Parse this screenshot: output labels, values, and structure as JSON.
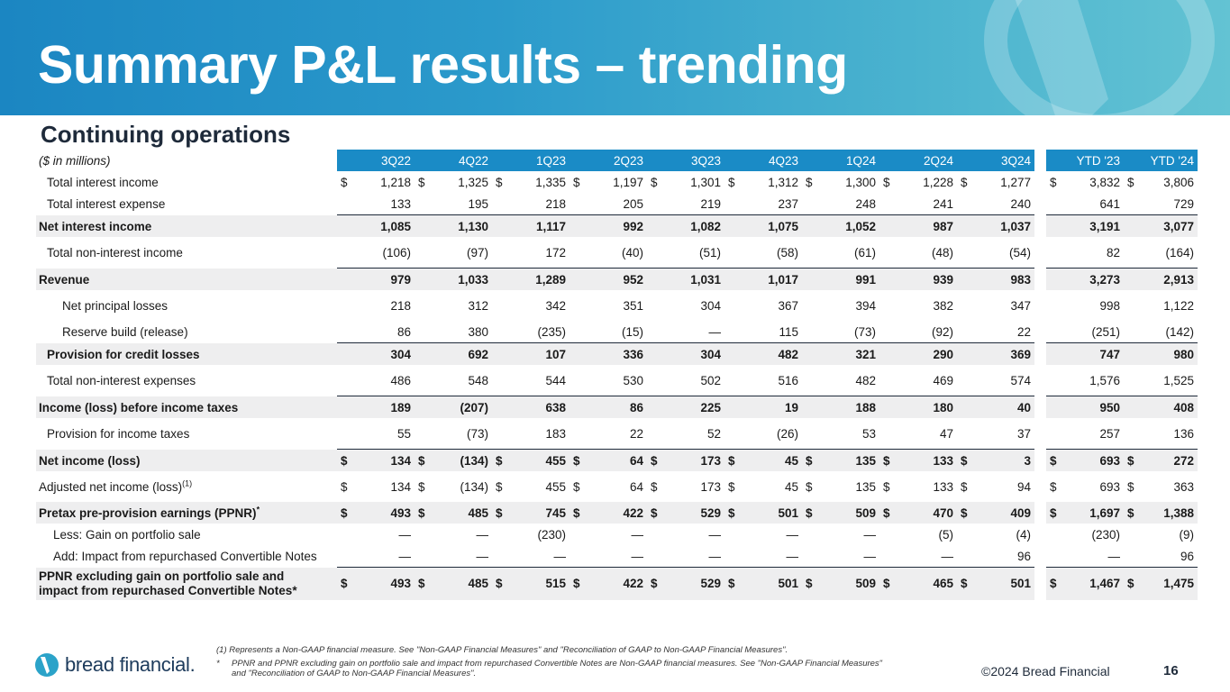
{
  "slide": {
    "title": "Summary P&L results – trending",
    "subtitle": "Continuing operations",
    "page_number": "16",
    "copyright": "©2024 Bread Financial",
    "logo_text": "bread financial."
  },
  "table": {
    "corner_label": "($ in millions)",
    "quarter_headers": [
      "3Q22",
      "4Q22",
      "1Q23",
      "2Q23",
      "3Q23",
      "4Q23",
      "1Q24",
      "2Q24",
      "3Q24"
    ],
    "ytd_headers": [
      "YTD '23",
      "YTD '24"
    ],
    "rows": [
      {
        "label": "Total interest income",
        "cur": [
          "$",
          "$",
          "$",
          "$",
          "$",
          "$",
          "$",
          "$",
          "$"
        ],
        "q": [
          "1,218",
          "1,325",
          "1,335",
          "1,197",
          "1,301",
          "1,312",
          "1,300",
          "1,228",
          "1,277"
        ],
        "ycur": [
          "$",
          "$"
        ],
        "y": [
          "3,832",
          "3,806"
        ]
      },
      {
        "label": "Total interest expense",
        "cur": [
          "",
          "",
          "",
          "",
          "",
          "",
          "",
          "",
          ""
        ],
        "q": [
          "133",
          "195",
          "218",
          "205",
          "219",
          "237",
          "248",
          "241",
          "240"
        ],
        "ycur": [
          "",
          ""
        ],
        "y": [
          "641",
          "729"
        ]
      },
      {
        "label": "Net interest income",
        "cur": [
          "",
          "",
          "",
          "",
          "",
          "",
          "",
          "",
          ""
        ],
        "q": [
          "1,085",
          "1,130",
          "1,117",
          "992",
          "1,082",
          "1,075",
          "1,052",
          "987",
          "1,037"
        ],
        "ycur": [
          "",
          ""
        ],
        "y": [
          "3,191",
          "3,077"
        ]
      },
      {
        "label": "Total non-interest income",
        "cur": [
          "",
          "",
          "",
          "",
          "",
          "",
          "",
          "",
          ""
        ],
        "q": [
          "(106)",
          "(97)",
          "172",
          "(40)",
          "(51)",
          "(58)",
          "(61)",
          "(48)",
          "(54)"
        ],
        "ycur": [
          "",
          ""
        ],
        "y": [
          "82",
          "(164)"
        ]
      },
      {
        "label": "Revenue",
        "cur": [
          "",
          "",
          "",
          "",
          "",
          "",
          "",
          "",
          ""
        ],
        "q": [
          "979",
          "1,033",
          "1,289",
          "952",
          "1,031",
          "1,017",
          "991",
          "939",
          "983"
        ],
        "ycur": [
          "",
          ""
        ],
        "y": [
          "3,273",
          "2,913"
        ]
      },
      {
        "label": "Net principal losses",
        "cur": [
          "",
          "",
          "",
          "",
          "",
          "",
          "",
          "",
          ""
        ],
        "q": [
          "218",
          "312",
          "342",
          "351",
          "304",
          "367",
          "394",
          "382",
          "347"
        ],
        "ycur": [
          "",
          ""
        ],
        "y": [
          "998",
          "1,122"
        ]
      },
      {
        "label": "Reserve build (release)",
        "cur": [
          "",
          "",
          "",
          "",
          "",
          "",
          "",
          "",
          ""
        ],
        "q": [
          "86",
          "380",
          "(235)",
          "(15)",
          "—",
          "115",
          "(73)",
          "(92)",
          "22"
        ],
        "ycur": [
          "",
          ""
        ],
        "y": [
          "(251)",
          "(142)"
        ]
      },
      {
        "label": "Provision for credit losses",
        "cur": [
          "",
          "",
          "",
          "",
          "",
          "",
          "",
          "",
          ""
        ],
        "q": [
          "304",
          "692",
          "107",
          "336",
          "304",
          "482",
          "321",
          "290",
          "369"
        ],
        "ycur": [
          "",
          ""
        ],
        "y": [
          "747",
          "980"
        ]
      },
      {
        "label": "Total non-interest expenses",
        "cur": [
          "",
          "",
          "",
          "",
          "",
          "",
          "",
          "",
          ""
        ],
        "q": [
          "486",
          "548",
          "544",
          "530",
          "502",
          "516",
          "482",
          "469",
          "574"
        ],
        "ycur": [
          "",
          ""
        ],
        "y": [
          "1,576",
          "1,525"
        ]
      },
      {
        "label": "Income (loss) before income taxes",
        "cur": [
          "",
          "",
          "",
          "",
          "",
          "",
          "",
          "",
          ""
        ],
        "q": [
          "189",
          "(207)",
          "638",
          "86",
          "225",
          "19",
          "188",
          "180",
          "40"
        ],
        "ycur": [
          "",
          ""
        ],
        "y": [
          "950",
          "408"
        ]
      },
      {
        "label": "Provision for income taxes",
        "cur": [
          "",
          "",
          "",
          "",
          "",
          "",
          "",
          "",
          ""
        ],
        "q": [
          "55",
          "(73)",
          "183",
          "22",
          "52",
          "(26)",
          "53",
          "47",
          "37"
        ],
        "ycur": [
          "",
          ""
        ],
        "y": [
          "257",
          "136"
        ]
      },
      {
        "label": "Net income (loss)",
        "cur": [
          "$",
          "$",
          "$",
          "$",
          "$",
          "$",
          "$",
          "$",
          "$"
        ],
        "q": [
          "134",
          "(134)",
          "455",
          "64",
          "173",
          "45",
          "135",
          "133",
          "3"
        ],
        "ycur": [
          "$",
          "$"
        ],
        "y": [
          "693",
          "272"
        ]
      },
      {
        "label": "Adjusted net income (loss)",
        "sup": "(1)",
        "cur": [
          "$",
          "$",
          "$",
          "$",
          "$",
          "$",
          "$",
          "$",
          "$"
        ],
        "q": [
          "134",
          "(134)",
          "455",
          "64",
          "173",
          "45",
          "135",
          "133",
          "94"
        ],
        "ycur": [
          "$",
          "$"
        ],
        "y": [
          "693",
          "363"
        ]
      },
      {
        "label": "Pretax pre-provision earnings (PPNR)",
        "sup": "*",
        "cur": [
          "$",
          "$",
          "$",
          "$",
          "$",
          "$",
          "$",
          "$",
          "$"
        ],
        "q": [
          "493",
          "485",
          "745",
          "422",
          "529",
          "501",
          "509",
          "470",
          "409"
        ],
        "ycur": [
          "$",
          "$"
        ],
        "y": [
          "1,697",
          "1,388"
        ]
      },
      {
        "label": "Less: Gain on portfolio sale",
        "cur": [
          "",
          "",
          "",
          "",
          "",
          "",
          "",
          "",
          ""
        ],
        "q": [
          "—",
          "—",
          "(230)",
          "—",
          "—",
          "—",
          "—",
          "(5)",
          "(4)"
        ],
        "ycur": [
          "",
          ""
        ],
        "y": [
          "(230)",
          "(9)"
        ]
      },
      {
        "label": "Add: Impact from repurchased Convertible Notes",
        "cur": [
          "",
          "",
          "",
          "",
          "",
          "",
          "",
          "",
          ""
        ],
        "q": [
          "—",
          "—",
          "—",
          "—",
          "—",
          "—",
          "—",
          "—",
          "96"
        ],
        "ycur": [
          "",
          ""
        ],
        "y": [
          "—",
          "96"
        ]
      },
      {
        "label": "PPNR excluding gain on portfolio sale and",
        "label2": "impact from repurchased Convertible Notes*",
        "cur": [
          "$",
          "$",
          "$",
          "$",
          "$",
          "$",
          "$",
          "$",
          "$"
        ],
        "q": [
          "493",
          "485",
          "515",
          "422",
          "529",
          "501",
          "509",
          "465",
          "501"
        ],
        "ycur": [
          "$",
          "$"
        ],
        "y": [
          "1,467",
          "1,475"
        ]
      }
    ]
  },
  "footnotes": {
    "note1": "(1)  Represents a Non-GAAP financial measure.  See \"Non-GAAP Financial Measures\" and \"Reconciliation of GAAP to Non-GAAP Financial Measures\".",
    "note2_marker": "*",
    "note2_line1": "PPNR and PPNR excluding gain on portfolio sale and impact from repurchased Convertible Notes are Non-GAAP financial measures. See \"Non-GAAP Financial Measures\"",
    "note2_line2": "and \"Reconciliation of GAAP to Non-GAAP Financial Measures\"."
  },
  "colors": {
    "header_blue": "#1a8bc6",
    "banner_blue": "#1b86c2",
    "banner_teal": "#63c3d3",
    "shade_gray": "#eeeeef"
  }
}
